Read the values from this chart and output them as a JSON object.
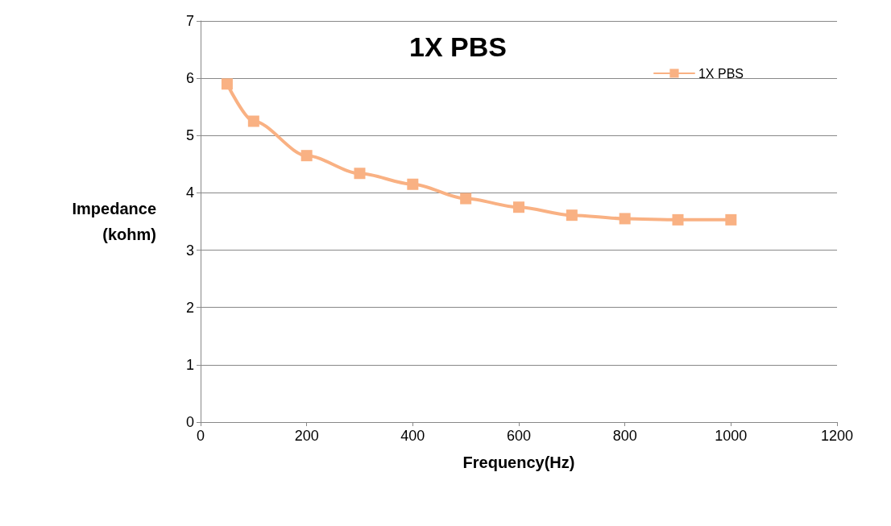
{
  "chart_data": {
    "type": "line",
    "title": "1X PBS",
    "xlabel": "Frequency(Hz)",
    "ylabel": "Impedance\n(kohm)",
    "x": [
      50,
      100,
      200,
      300,
      400,
      500,
      600,
      700,
      800,
      900,
      1000
    ],
    "series": [
      {
        "name": "1X PBS",
        "color": "#f9b183",
        "values": [
          5.9,
          5.25,
          4.65,
          4.34,
          4.15,
          3.9,
          3.75,
          3.61,
          3.55,
          3.53,
          3.53
        ]
      }
    ],
    "xlim": [
      0,
      1200
    ],
    "xticks": [
      0,
      200,
      400,
      600,
      800,
      1000,
      1200
    ],
    "ylim": [
      0,
      7
    ],
    "yticks": [
      0,
      1,
      2,
      3,
      4,
      5,
      6,
      7
    ],
    "grid": "y",
    "legend": "top right",
    "marker": "square",
    "line_style": "solid"
  }
}
